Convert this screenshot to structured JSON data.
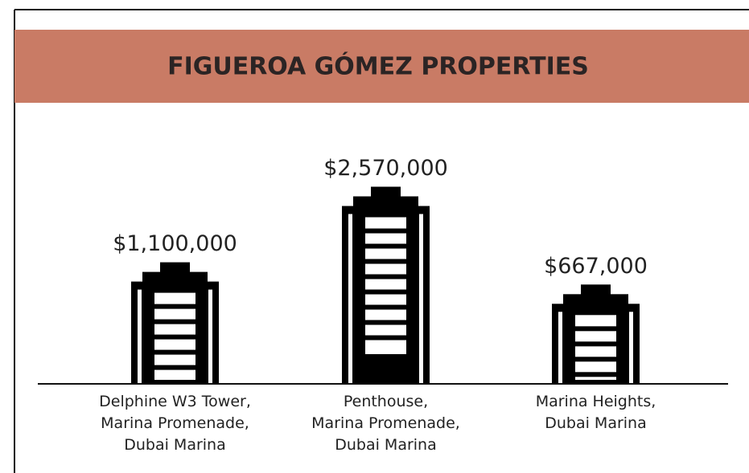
{
  "chart_data": {
    "type": "bar",
    "title": "FIGUEROA GÓMEZ PROPERTIES",
    "categories": [
      "Delphine W3 Tower, Marina Promenade, Dubai Marina",
      "Penthouse, Marina Promenade, Dubai Marina",
      "Marina Heights, Dubai Marina"
    ],
    "values": [
      1100000,
      2570000,
      667000
    ],
    "value_labels": [
      "$1,100,000",
      "$2,570,000",
      "$667,000"
    ],
    "color": "#000000",
    "header_color": "#c97b65"
  }
}
